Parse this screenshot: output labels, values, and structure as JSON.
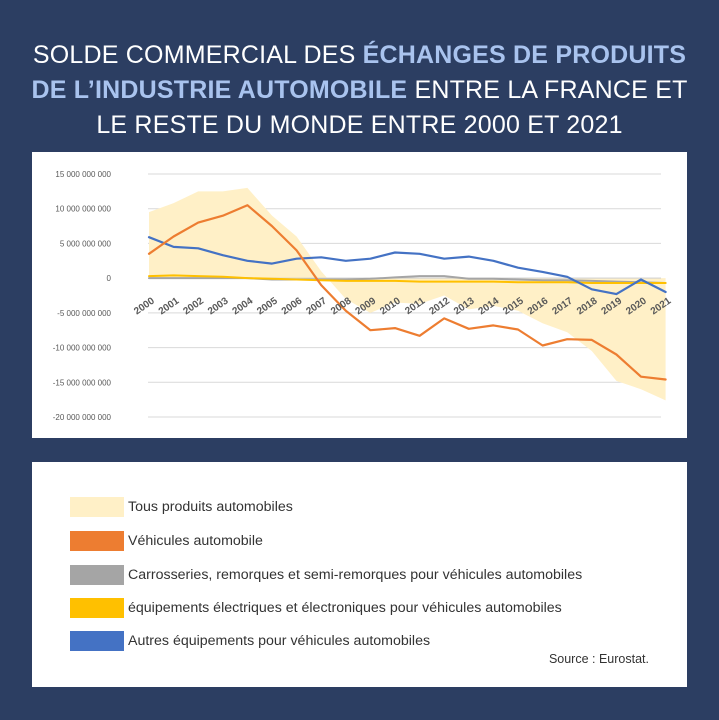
{
  "title": {
    "part1": "SOLDE COMMERCIAL DES ",
    "highlight1": "ÉCHANGES DE PRODUITS",
    "highlight2": "DE L’INDUSTRIE AUTOMOBILE",
    "part2": " ENTRE LA FRANCE ET",
    "line3": "LE RESTE DU MONDE ENTRE 2000 ET 2021"
  },
  "colors": {
    "background": "#2c3e62",
    "highlight": "#a9c3ee",
    "tous": "#fff0c7",
    "vehicules": "#ed7d31",
    "carrosseries": "#a5a5a5",
    "equipements_electriques": "#ffc000",
    "autres": "#4472c4"
  },
  "chart_data": {
    "type": "line",
    "ylim": [
      -20000000000,
      15000000000
    ],
    "y_ticks": [
      15000000000,
      10000000000,
      5000000000,
      0,
      -5000000000,
      -10000000000,
      -15000000000,
      -20000000000
    ],
    "y_tick_labels": [
      "15 000 000 000",
      "10 000 000 000",
      "5 000 000 000",
      "0",
      "-5 000 000 000",
      "-10 000 000 000",
      "-15 000 000 000",
      "-20 000 000 000"
    ],
    "grid": true,
    "categories": [
      "2000",
      "2001",
      "2002",
      "2003",
      "2004",
      "2005",
      "2006",
      "2007",
      "2008",
      "2009",
      "2010",
      "2011",
      "2012",
      "2013",
      "2014",
      "2015",
      "2016",
      "2017",
      "2018",
      "2019",
      "2020",
      "2021"
    ],
    "series": [
      {
        "name": "Tous produits automobiles",
        "style": "area",
        "color": "#fff0c7",
        "values": [
          9500000000,
          10800000000,
          12500000000,
          12500000000,
          13000000000,
          9000000000,
          6000000000,
          1000000000,
          -3000000000,
          -5000000000,
          -3500000000,
          -3700000000,
          -2500000000,
          -4500000000,
          -4000000000,
          -4700000000,
          -6500000000,
          -7800000000,
          -10500000000,
          -14800000000,
          -16000000000,
          -17600000000
        ]
      },
      {
        "name": "Véhicules automobile",
        "style": "line",
        "color": "#ed7d31",
        "values": [
          3500000000,
          6000000000,
          8000000000,
          9000000000,
          10500000000,
          7500000000,
          4000000000,
          -1000000000,
          -4700000000,
          -7500000000,
          -7200000000,
          -8300000000,
          -5800000000,
          -7300000000,
          -6800000000,
          -7400000000,
          -9700000000,
          -8800000000,
          -8900000000,
          -11000000000,
          -14200000000,
          -14600000000
        ]
      },
      {
        "name": "Carrosseries, remorques et semi-remorques pour véhicules automobiles",
        "style": "line",
        "color": "#a5a5a5",
        "values": [
          0,
          0,
          0,
          0,
          0,
          -200000000,
          -200000000,
          -200000000,
          -200000000,
          -100000000,
          100000000,
          300000000,
          300000000,
          -100000000,
          -100000000,
          -200000000,
          -300000000,
          -300000000,
          -400000000,
          -500000000,
          -600000000,
          -700000000
        ]
      },
      {
        "name": "équipements électriques et électroniques pour véhicules automobiles",
        "style": "line",
        "color": "#ffc000",
        "values": [
          300000000,
          400000000,
          300000000,
          200000000,
          0,
          -100000000,
          -200000000,
          -300000000,
          -400000000,
          -400000000,
          -400000000,
          -500000000,
          -500000000,
          -500000000,
          -500000000,
          -600000000,
          -600000000,
          -600000000,
          -700000000,
          -700000000,
          -700000000,
          -700000000
        ]
      },
      {
        "name": "Autres équipements pour véhicules automobiles",
        "style": "line",
        "color": "#4472c4",
        "values": [
          5900000000,
          4500000000,
          4300000000,
          3300000000,
          2500000000,
          2100000000,
          2800000000,
          3000000000,
          2500000000,
          2800000000,
          3700000000,
          3500000000,
          2800000000,
          3100000000,
          2500000000,
          1500000000,
          900000000,
          200000000,
          -1600000000,
          -2300000000,
          -200000000,
          -2000000000
        ]
      }
    ]
  },
  "legend": {
    "items": [
      {
        "label": "Tous produits automobiles",
        "color": "#fff0c7"
      },
      {
        "label": "Véhicules automobile",
        "color": "#ed7d31"
      },
      {
        "label": "Carrosseries, remorques et semi-remorques pour véhicules automobiles",
        "color": "#a5a5a5"
      },
      {
        "label": "équipements électriques et électroniques pour véhicules automobiles",
        "color": "#ffc000"
      },
      {
        "label": "Autres équipements pour véhicules automobiles",
        "color": "#4472c4"
      }
    ],
    "source": "Source : Eurostat."
  }
}
